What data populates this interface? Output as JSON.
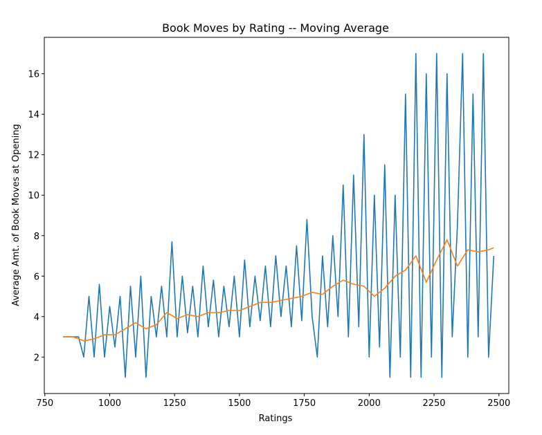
{
  "chart_data": {
    "type": "line",
    "title": "Book Moves by Rating -- Moving Average",
    "x_label": "Ratings",
    "y_label": "Average Amt. of Book Moves at Opening",
    "xlim": [
      748,
      2538
    ],
    "xticks": [
      750,
      1000,
      1250,
      1500,
      1750,
      2000,
      2250,
      2500
    ],
    "ylim": [
      0.2,
      17.8
    ],
    "yticks": [
      2,
      4,
      6,
      8,
      10,
      12,
      14,
      16
    ],
    "series": [
      {
        "color": "#1f77b4",
        "x": [
          820,
          840,
          860,
          880,
          900,
          920,
          940,
          960,
          980,
          1000,
          1020,
          1040,
          1060,
          1080,
          1100,
          1120,
          1140,
          1160,
          1180,
          1200,
          1220,
          1240,
          1260,
          1280,
          1300,
          1320,
          1340,
          1360,
          1380,
          1400,
          1420,
          1440,
          1460,
          1480,
          1500,
          1520,
          1540,
          1560,
          1580,
          1600,
          1620,
          1640,
          1660,
          1680,
          1700,
          1720,
          1740,
          1760,
          1780,
          1800,
          1820,
          1840,
          1860,
          1880,
          1900,
          1920,
          1940,
          1960,
          1980,
          2000,
          2020,
          2040,
          2060,
          2080,
          2100,
          2120,
          2140,
          2160,
          2180,
          2200,
          2220,
          2240,
          2260,
          2280,
          2300,
          2320,
          2340,
          2360,
          2380,
          2400,
          2420,
          2440,
          2460,
          2480
        ],
        "values": [
          3,
          3,
          3,
          3,
          2,
          5,
          2,
          5.6,
          2,
          4.5,
          2.5,
          5,
          1,
          5.5,
          2,
          6,
          1,
          5,
          3,
          5.5,
          3,
          7.7,
          3,
          6,
          3.2,
          5.5,
          3,
          6.5,
          3.5,
          5.8,
          3,
          5.5,
          3.5,
          6,
          3,
          6.8,
          3.5,
          6,
          3.8,
          6.5,
          3.5,
          7,
          4,
          6.5,
          3.5,
          7.5,
          3.8,
          8.8,
          4,
          2,
          7,
          3.5,
          8,
          4,
          10.5,
          3,
          11,
          3.5,
          13,
          2,
          10,
          2.5,
          11.5,
          1,
          10,
          2,
          15,
          1,
          17,
          1,
          16,
          2,
          17,
          1,
          16,
          3,
          8.5,
          17,
          2,
          15,
          3,
          17,
          2,
          7
        ]
      },
      {
        "color": "#ff7f0e",
        "x": [
          820,
          860,
          900,
          940,
          980,
          1020,
          1060,
          1100,
          1140,
          1180,
          1220,
          1260,
          1300,
          1340,
          1380,
          1420,
          1460,
          1500,
          1540,
          1580,
          1620,
          1660,
          1700,
          1740,
          1780,
          1820,
          1860,
          1900,
          1940,
          1980,
          2020,
          2060,
          2100,
          2140,
          2180,
          2220,
          2260,
          2300,
          2340,
          2380,
          2420,
          2460,
          2480
        ],
        "values": [
          3,
          3,
          2.8,
          2.9,
          3.1,
          3.1,
          3.4,
          3.7,
          3.4,
          3.6,
          4.2,
          3.9,
          4.1,
          4.0,
          4.2,
          4.2,
          4.3,
          4.3,
          4.5,
          4.7,
          4.7,
          4.8,
          4.9,
          5.0,
          5.2,
          5.1,
          5.5,
          5.8,
          5.6,
          5.5,
          5.0,
          5.4,
          6.0,
          6.3,
          7.0,
          5.7,
          6.8,
          7.8,
          6.5,
          7.3,
          7.2,
          7.3,
          7.4
        ]
      }
    ]
  }
}
